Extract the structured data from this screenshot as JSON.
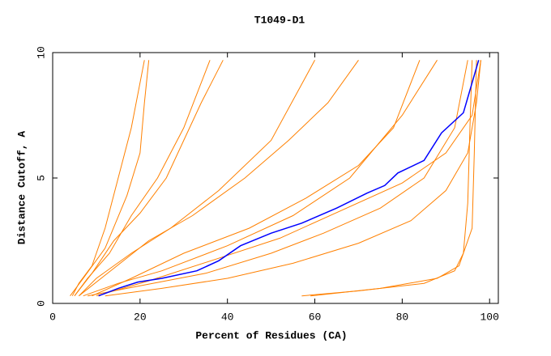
{
  "chart_data": {
    "type": "line",
    "title": "T1049-D1",
    "x_label": "Percent of Residues (CA)",
    "y_label": "Distance Cutoff, A",
    "xlim": [
      0,
      102
    ],
    "ylim": [
      0,
      10
    ],
    "xticks": [
      0,
      20,
      40,
      60,
      80,
      100
    ],
    "yticks": [
      0,
      5,
      10
    ],
    "series": [
      {
        "color": "#ff8000",
        "x": [
          4.5,
          6,
          9,
          12,
          15,
          18,
          21
        ],
        "values": [
          0.3,
          0.8,
          1.5,
          3,
          5,
          7,
          9.7
        ]
      },
      {
        "color": "#ff8000",
        "x": [
          5,
          8,
          13,
          18,
          24,
          30,
          36
        ],
        "values": [
          0.3,
          1,
          2,
          3.5,
          5,
          7,
          9.7
        ]
      },
      {
        "color": "#ff8000",
        "x": [
          6,
          10,
          18,
          27,
          38,
          50,
          60
        ],
        "values": [
          0.3,
          1,
          2,
          3,
          4.5,
          6.5,
          9.7
        ]
      },
      {
        "color": "#ff8000",
        "x": [
          7,
          15,
          25,
          40,
          55,
          68,
          80,
          88
        ],
        "values": [
          0.3,
          0.8,
          1.3,
          2.3,
          3.5,
          5,
          7.5,
          9.7
        ]
      },
      {
        "color": "#ff8000",
        "x": [
          8,
          20,
          35,
          50,
          62,
          75,
          85,
          92,
          95
        ],
        "values": [
          0.3,
          0.7,
          1.2,
          2,
          2.8,
          3.8,
          5,
          7,
          9.7
        ]
      },
      {
        "color": "#ff8000",
        "x": [
          12,
          25,
          40,
          55,
          70,
          82,
          90,
          95,
          97,
          98
        ],
        "values": [
          0.3,
          0.6,
          1,
          1.6,
          2.4,
          3.3,
          4.5,
          6,
          8,
          9.7
        ]
      },
      {
        "color": "#ff8000",
        "x": [
          57,
          70,
          85,
          92,
          94,
          95,
          95.5,
          96
        ],
        "values": [
          0.3,
          0.5,
          0.8,
          1.3,
          2,
          4,
          7,
          9.7
        ]
      },
      {
        "color": "#ff8000",
        "x": [
          59,
          75,
          88,
          93,
          96,
          96.5,
          97
        ],
        "values": [
          0.3,
          0.6,
          1,
          1.5,
          3,
          6,
          9.7
        ]
      },
      {
        "color": "#ff8000",
        "x": [
          5,
          9,
          14,
          20,
          26,
          30,
          34,
          39
        ],
        "values": [
          0.3,
          1.2,
          2.5,
          3.6,
          5,
          6.5,
          8,
          9.7
        ]
      },
      {
        "color": "#ff8000",
        "x": [
          4,
          7,
          12,
          17,
          20,
          21,
          22
        ],
        "values": [
          0.3,
          1,
          2.2,
          4.3,
          6,
          8,
          9.7
        ]
      },
      {
        "color": "#ff8000",
        "x": [
          9,
          18,
          30,
          45,
          58,
          70,
          78,
          84
        ],
        "values": [
          0.3,
          1,
          2,
          3,
          4.2,
          5.5,
          7,
          9.7
        ]
      },
      {
        "color": "#ff8000",
        "x": [
          6,
          14,
          22,
          32,
          44,
          54,
          63,
          70
        ],
        "values": [
          0.3,
          1.4,
          2.5,
          3.5,
          5,
          6.5,
          8,
          9.7
        ]
      },
      {
        "color": "#ff8000",
        "x": [
          10,
          22,
          38,
          52,
          66,
          80,
          90,
          96,
          98
        ],
        "values": [
          0.3,
          0.9,
          1.8,
          2.6,
          3.7,
          4.8,
          6,
          7.5,
          9.7
        ]
      },
      {
        "color": "#0000ff",
        "x": [
          10.5,
          15,
          19.5,
          25,
          33,
          38,
          43,
          50,
          57,
          65,
          72,
          76,
          79,
          85,
          89,
          94,
          96,
          97.5
        ],
        "values": [
          0.3,
          0.6,
          0.85,
          1,
          1.3,
          1.7,
          2.3,
          2.8,
          3.2,
          3.8,
          4.4,
          4.7,
          5.2,
          5.7,
          6.8,
          7.6,
          8.8,
          9.7
        ]
      }
    ]
  }
}
